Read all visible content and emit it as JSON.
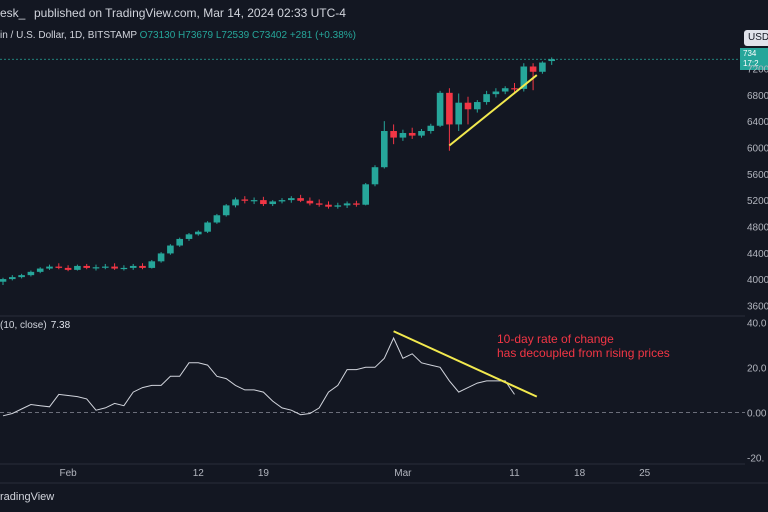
{
  "header": {
    "author": "esk_",
    "published": "published on TradingView.com, Mar 14, 2024 02:33 UTC-4"
  },
  "legend": {
    "symbol": "in / U.S. Dollar, 1D, BITSTAMP",
    "open": "O73130",
    "high": "H73679",
    "low": "L72539",
    "close": "C73402",
    "change": "+281 (+0.38%)"
  },
  "currency_button": "USD",
  "price_tag": {
    "value": "734",
    "time": "17:2"
  },
  "indicator": {
    "label": "(10, close)",
    "value": "7.38"
  },
  "annotation": {
    "line1": "10-day rate of change",
    "line2": "has decoupled from rising prices"
  },
  "brand": "radingView",
  "colors": {
    "up": "#26a69a",
    "down": "#f23645",
    "trend": "#f2e94e",
    "roc_line": "#d1d4dc",
    "background": "#131722"
  },
  "chart_data": [
    {
      "type": "candlestick",
      "title": "",
      "x_ticks": [
        "Feb",
        "12",
        "19",
        "Mar",
        "11",
        "18",
        "25"
      ],
      "y_ticks": [
        36000,
        40000,
        44000,
        48000,
        52000,
        56000,
        60000,
        64000,
        68000,
        72000
      ],
      "y_tick_labels": [
        "3600",
        "4000",
        "4400",
        "4800",
        "5200",
        "5600",
        "6000",
        "6400",
        "6800",
        "7200"
      ],
      "ylim": [
        35000,
        74200
      ],
      "candles": [
        {
          "o": 39600,
          "h": 40200,
          "l": 39100,
          "c": 40000
        },
        {
          "o": 40000,
          "h": 40600,
          "l": 39800,
          "c": 40300
        },
        {
          "o": 40300,
          "h": 40800,
          "l": 40100,
          "c": 40600
        },
        {
          "o": 40600,
          "h": 41300,
          "l": 40400,
          "c": 41100
        },
        {
          "o": 41100,
          "h": 41800,
          "l": 40900,
          "c": 41600
        },
        {
          "o": 41600,
          "h": 42200,
          "l": 41400,
          "c": 41900
        },
        {
          "o": 41900,
          "h": 42400,
          "l": 41500,
          "c": 41700
        },
        {
          "o": 41700,
          "h": 42100,
          "l": 41200,
          "c": 41400
        },
        {
          "o": 41400,
          "h": 42200,
          "l": 41300,
          "c": 42000
        },
        {
          "o": 42000,
          "h": 42300,
          "l": 41500,
          "c": 41700
        },
        {
          "o": 41700,
          "h": 42200,
          "l": 41300,
          "c": 41800
        },
        {
          "o": 41800,
          "h": 42300,
          "l": 41500,
          "c": 41900
        },
        {
          "o": 41900,
          "h": 42400,
          "l": 41400,
          "c": 41600
        },
        {
          "o": 41600,
          "h": 42100,
          "l": 41300,
          "c": 41700
        },
        {
          "o": 41700,
          "h": 42300,
          "l": 41400,
          "c": 42000
        },
        {
          "o": 42000,
          "h": 42400,
          "l": 41500,
          "c": 41700
        },
        {
          "o": 41700,
          "h": 42900,
          "l": 41600,
          "c": 42700
        },
        {
          "o": 42700,
          "h": 44100,
          "l": 42500,
          "c": 43900
        },
        {
          "o": 43900,
          "h": 45300,
          "l": 43700,
          "c": 45100
        },
        {
          "o": 45100,
          "h": 46300,
          "l": 44900,
          "c": 46100
        },
        {
          "o": 46100,
          "h": 47000,
          "l": 45800,
          "c": 46800
        },
        {
          "o": 46800,
          "h": 47400,
          "l": 46600,
          "c": 47200
        },
        {
          "o": 47200,
          "h": 48800,
          "l": 47000,
          "c": 48600
        },
        {
          "o": 48600,
          "h": 49900,
          "l": 48400,
          "c": 49700
        },
        {
          "o": 49700,
          "h": 51400,
          "l": 49500,
          "c": 51200
        },
        {
          "o": 51200,
          "h": 52400,
          "l": 50900,
          "c": 52100
        },
        {
          "o": 52100,
          "h": 52600,
          "l": 51500,
          "c": 51900
        },
        {
          "o": 51900,
          "h": 52400,
          "l": 51400,
          "c": 52000
        },
        {
          "o": 52000,
          "h": 52500,
          "l": 51100,
          "c": 51400
        },
        {
          "o": 51400,
          "h": 52000,
          "l": 51100,
          "c": 51800
        },
        {
          "o": 51800,
          "h": 52300,
          "l": 51500,
          "c": 52000
        },
        {
          "o": 52000,
          "h": 52600,
          "l": 51600,
          "c": 52300
        },
        {
          "o": 52300,
          "h": 52800,
          "l": 51700,
          "c": 51900
        },
        {
          "o": 51900,
          "h": 52400,
          "l": 51200,
          "c": 51500
        },
        {
          "o": 51500,
          "h": 52100,
          "l": 51000,
          "c": 51300
        },
        {
          "o": 51300,
          "h": 51800,
          "l": 50700,
          "c": 51000
        },
        {
          "o": 51000,
          "h": 51600,
          "l": 50700,
          "c": 51200
        },
        {
          "o": 51200,
          "h": 51800,
          "l": 50800,
          "c": 51500
        },
        {
          "o": 51500,
          "h": 51900,
          "l": 51000,
          "c": 51300
        },
        {
          "o": 51300,
          "h": 54600,
          "l": 51200,
          "c": 54400
        },
        {
          "o": 54400,
          "h": 57300,
          "l": 54100,
          "c": 57000
        },
        {
          "o": 57000,
          "h": 64000,
          "l": 56800,
          "c": 62500
        },
        {
          "o": 62500,
          "h": 63500,
          "l": 60500,
          "c": 61500
        },
        {
          "o": 61500,
          "h": 62700,
          "l": 61000,
          "c": 62200
        },
        {
          "o": 62200,
          "h": 63000,
          "l": 61300,
          "c": 61800
        },
        {
          "o": 61800,
          "h": 62800,
          "l": 61500,
          "c": 62500
        },
        {
          "o": 62500,
          "h": 63600,
          "l": 62100,
          "c": 63300
        },
        {
          "o": 63300,
          "h": 68600,
          "l": 63100,
          "c": 68300
        },
        {
          "o": 68300,
          "h": 69000,
          "l": 59500,
          "c": 63500
        },
        {
          "o": 63500,
          "h": 68200,
          "l": 62500,
          "c": 66800
        },
        {
          "o": 66800,
          "h": 67700,
          "l": 63500,
          "c": 65800
        },
        {
          "o": 65800,
          "h": 67200,
          "l": 65300,
          "c": 66900
        },
        {
          "o": 66900,
          "h": 68600,
          "l": 66500,
          "c": 68100
        },
        {
          "o": 68100,
          "h": 69000,
          "l": 67600,
          "c": 68500
        },
        {
          "o": 68500,
          "h": 69300,
          "l": 68100,
          "c": 69000
        },
        {
          "o": 69000,
          "h": 69800,
          "l": 68200,
          "c": 68900
        },
        {
          "o": 68900,
          "h": 72800,
          "l": 68500,
          "c": 72300
        },
        {
          "o": 72300,
          "h": 72800,
          "l": 68700,
          "c": 71500
        },
        {
          "o": 71500,
          "h": 73100,
          "l": 71200,
          "c": 72900
        },
        {
          "o": 73130,
          "h": 73679,
          "l": 72539,
          "c": 73402
        }
      ],
      "trend_line": {
        "x1": 48,
        "y1": 60300,
        "x2": 57.4,
        "y2": 71000
      }
    },
    {
      "type": "line",
      "title": "",
      "series": [
        {
          "name": "",
          "values": [
            -1.5,
            -0.5,
            1.5,
            3.5,
            3,
            2.5,
            8,
            7.5,
            7,
            6,
            1,
            2,
            4,
            3,
            9,
            11,
            12,
            12,
            16,
            16,
            22,
            22,
            21,
            16,
            15,
            12,
            10,
            10,
            9,
            5,
            2,
            1,
            -1,
            -0.5,
            2,
            9,
            12,
            19,
            19,
            20,
            20,
            24,
            33,
            24,
            26,
            22,
            21,
            20,
            14,
            9,
            11,
            13,
            14,
            14,
            14,
            8,
            null,
            null,
            null,
            null
          ]
        }
      ],
      "y_ticks": [
        -20,
        0,
        20,
        40
      ],
      "y_tick_labels": [
        "-20.",
        "0.00",
        "20.0",
        "40.0"
      ],
      "ylim": [
        -22,
        41
      ],
      "zero_line": 0,
      "trend_line": {
        "x1": 42,
        "y1": 36,
        "x2": 57.4,
        "y2": 7
      }
    }
  ]
}
